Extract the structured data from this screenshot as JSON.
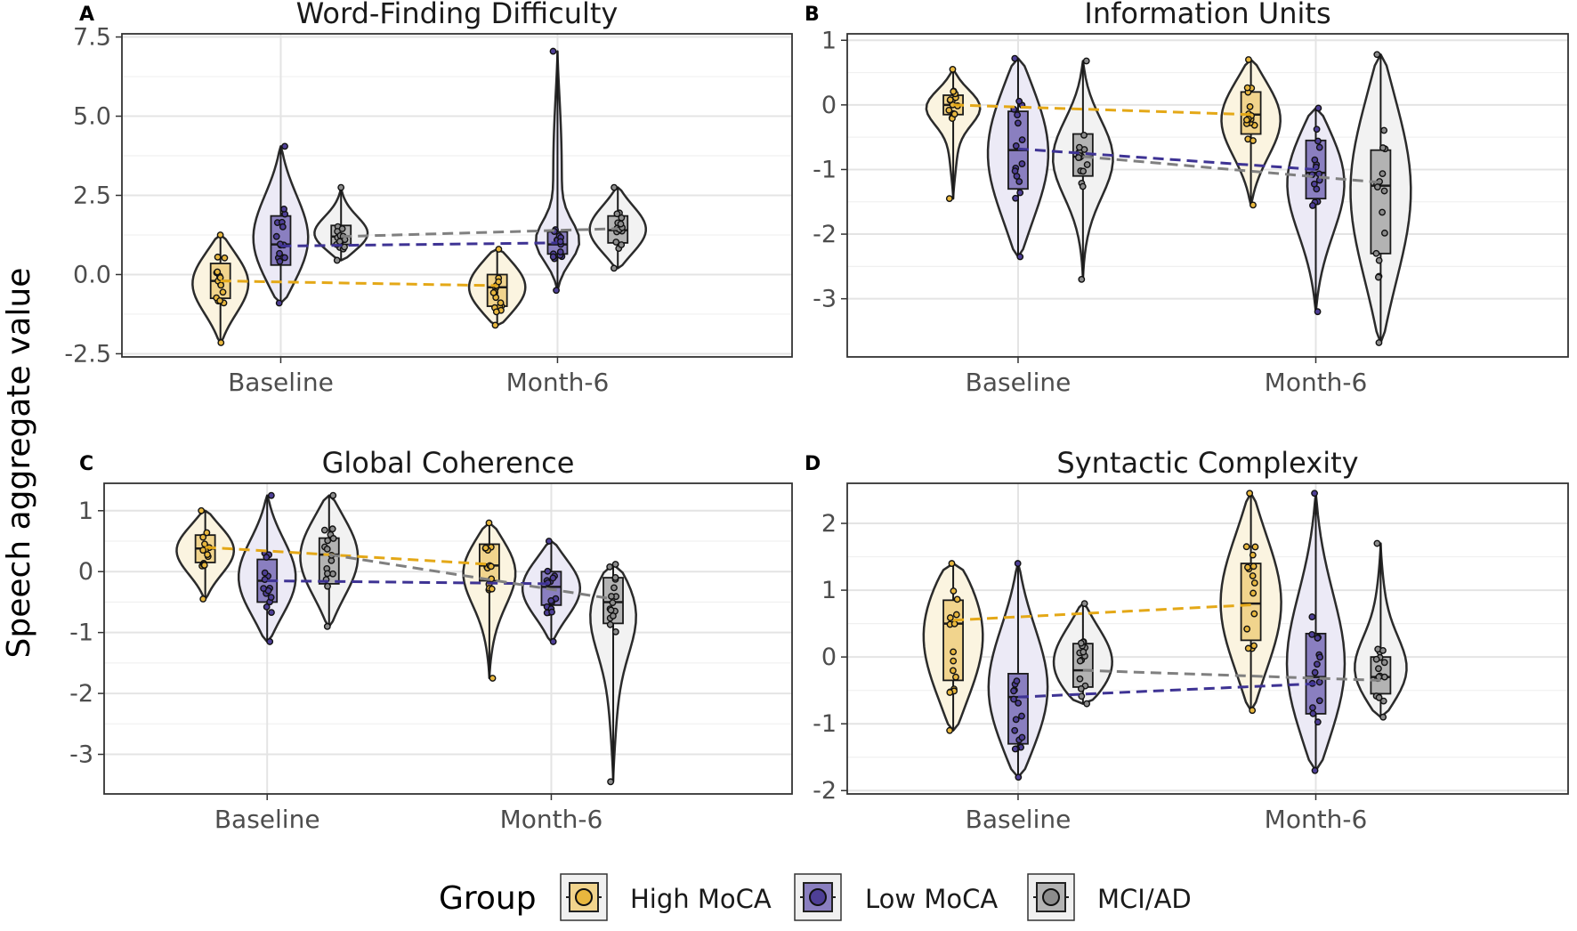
{
  "figure": {
    "y_axis_label": "Speech aggregate value",
    "legend": {
      "title": "Group",
      "items": [
        {
          "label": "High MoCA",
          "fill": "#F1D48D",
          "point": "#E8B73E"
        },
        {
          "label": "Low MoCA",
          "fill": "#8A7FC0",
          "point": "#4E3F96"
        },
        {
          "label": "MCI/AD",
          "fill": "#B3B3B3",
          "point": "#8C8C8C"
        }
      ]
    },
    "colors": {
      "group_fill": [
        "#F1D48D",
        "#8A7FC0",
        "#B3B3B3"
      ],
      "violin_fill": [
        "#FBF4E0",
        "#ECEAF6",
        "#F2F2F2"
      ],
      "trend": [
        "#E4A817",
        "#3E3394",
        "#808080"
      ]
    }
  },
  "chart_data": [
    {
      "type": "violin",
      "panel_tag": "A",
      "title": "Word-Finding Difficulty",
      "categories": [
        "Baseline",
        "Month-6"
      ],
      "ylim": [
        -2.6,
        7.6
      ],
      "yticks": [
        {
          "v": -2.5,
          "label": "-2.5"
        },
        {
          "v": 0,
          "label": "0.0"
        },
        {
          "v": 2.5,
          "label": "2.5"
        },
        {
          "v": 5,
          "label": "5.0"
        },
        {
          "v": 7.5,
          "label": "7.5"
        }
      ],
      "series": [
        {
          "name": "High MoCA",
          "groups": [
            {
              "min": -2.15,
              "max": 1.25,
              "q1": -0.75,
              "median": -0.2,
              "q3": 0.35,
              "mean": -0.2
            },
            {
              "min": -1.6,
              "max": 0.8,
              "q1": -1.0,
              "median": -0.4,
              "q3": 0.0,
              "mean": -0.35
            }
          ]
        },
        {
          "name": "Low MoCA",
          "groups": [
            {
              "min": -0.9,
              "max": 4.05,
              "q1": 0.3,
              "median": 0.95,
              "q3": 1.85,
              "mean": 0.9
            },
            {
              "min": -0.5,
              "max": 7.05,
              "q1": 0.65,
              "median": 0.95,
              "q3": 1.35,
              "mean": 1.0
            }
          ]
        },
        {
          "name": "MCI/AD",
          "groups": [
            {
              "min": 0.45,
              "max": 2.75,
              "q1": 0.95,
              "median": 1.2,
              "q3": 1.55,
              "mean": 1.2
            },
            {
              "min": 0.2,
              "max": 2.75,
              "q1": 1.0,
              "median": 1.4,
              "q3": 1.85,
              "mean": 1.45
            }
          ]
        }
      ]
    },
    {
      "type": "violin",
      "panel_tag": "B",
      "title": "Information Units",
      "categories": [
        "Baseline",
        "Month-6"
      ],
      "ylim": [
        -3.9,
        1.1
      ],
      "yticks": [
        {
          "v": -3,
          "label": "-3"
        },
        {
          "v": -2,
          "label": "-2"
        },
        {
          "v": -1,
          "label": "-1"
        },
        {
          "v": 0,
          "label": "0"
        },
        {
          "v": 1,
          "label": "1"
        }
      ],
      "series": [
        {
          "name": "High MoCA",
          "groups": [
            {
              "min": -1.45,
              "max": 0.55,
              "q1": -0.15,
              "median": 0.0,
              "q3": 0.15,
              "mean": 0.0
            },
            {
              "min": -1.55,
              "max": 0.7,
              "q1": -0.45,
              "median": -0.15,
              "q3": 0.2,
              "mean": -0.15
            }
          ]
        },
        {
          "name": "Low MoCA",
          "groups": [
            {
              "min": -2.35,
              "max": 0.72,
              "q1": -1.3,
              "median": -0.7,
              "q3": -0.1,
              "mean": -0.68
            },
            {
              "min": -3.2,
              "max": -0.05,
              "q1": -1.45,
              "median": -1.05,
              "q3": -0.55,
              "mean": -1.0
            }
          ]
        },
        {
          "name": "MCI/AD",
          "groups": [
            {
              "min": -2.7,
              "max": 0.68,
              "q1": -1.1,
              "median": -0.8,
              "q3": -0.45,
              "mean": -0.8
            },
            {
              "min": -3.68,
              "max": 0.78,
              "q1": -2.3,
              "median": -1.25,
              "q3": -0.7,
              "mean": -1.2
            }
          ]
        }
      ]
    },
    {
      "type": "violin",
      "panel_tag": "C",
      "title": "Global Coherence",
      "categories": [
        "Baseline",
        "Month-6"
      ],
      "ylim": [
        -3.65,
        1.45
      ],
      "yticks": [
        {
          "v": -3,
          "label": "-3"
        },
        {
          "v": -2,
          "label": "-2"
        },
        {
          "v": -1,
          "label": "-1"
        },
        {
          "v": 0,
          "label": "0"
        },
        {
          "v": 1,
          "label": "1"
        }
      ],
      "series": [
        {
          "name": "High MoCA",
          "groups": [
            {
              "min": -0.45,
              "max": 1.0,
              "q1": 0.15,
              "median": 0.38,
              "q3": 0.6,
              "mean": 0.4
            },
            {
              "min": -1.75,
              "max": 0.8,
              "q1": -0.15,
              "median": 0.1,
              "q3": 0.45,
              "mean": 0.12
            }
          ]
        },
        {
          "name": "Low MoCA",
          "groups": [
            {
              "min": -1.15,
              "max": 1.25,
              "q1": -0.5,
              "median": -0.15,
              "q3": 0.2,
              "mean": -0.15
            },
            {
              "min": -1.15,
              "max": 0.5,
              "q1": -0.55,
              "median": -0.25,
              "q3": 0.0,
              "mean": -0.2
            }
          ]
        },
        {
          "name": "MCI/AD",
          "groups": [
            {
              "min": -0.9,
              "max": 1.25,
              "q1": -0.2,
              "median": 0.28,
              "q3": 0.55,
              "mean": 0.28
            },
            {
              "min": -3.45,
              "max": 0.12,
              "q1": -0.85,
              "median": -0.5,
              "q3": -0.1,
              "mean": -0.45
            }
          ]
        }
      ]
    },
    {
      "type": "violin",
      "panel_tag": "D",
      "title": "Syntactic Complexity",
      "categories": [
        "Baseline",
        "Month-6"
      ],
      "ylim": [
        -2.05,
        2.6
      ],
      "yticks": [
        {
          "v": -2,
          "label": "-2"
        },
        {
          "v": -1,
          "label": "-1"
        },
        {
          "v": 0,
          "label": "0"
        },
        {
          "v": 1,
          "label": "1"
        },
        {
          "v": 2,
          "label": "2"
        }
      ],
      "series": [
        {
          "name": "High MoCA",
          "groups": [
            {
              "min": -1.1,
              "max": 1.4,
              "q1": -0.35,
              "median": 0.5,
              "q3": 0.85,
              "mean": 0.55
            },
            {
              "min": -0.8,
              "max": 2.45,
              "q1": 0.25,
              "median": 0.8,
              "q3": 1.4,
              "mean": 0.78
            }
          ]
        },
        {
          "name": "Low MoCA",
          "groups": [
            {
              "min": -1.8,
              "max": 1.4,
              "q1": -1.3,
              "median": -0.6,
              "q3": -0.25,
              "mean": -0.6
            },
            {
              "min": -1.7,
              "max": 2.45,
              "q1": -0.85,
              "median": -0.3,
              "q3": 0.35,
              "mean": -0.4
            }
          ]
        },
        {
          "name": "MCI/AD",
          "groups": [
            {
              "min": -0.7,
              "max": 0.8,
              "q1": -0.45,
              "median": -0.2,
              "q3": 0.2,
              "mean": -0.2
            },
            {
              "min": -0.9,
              "max": 1.7,
              "q1": -0.55,
              "median": -0.3,
              "q3": 0.0,
              "mean": -0.35
            }
          ]
        }
      ]
    }
  ]
}
